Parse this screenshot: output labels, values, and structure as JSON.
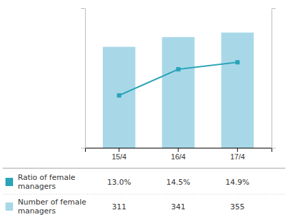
{
  "chart_data": {
    "type": "bar",
    "categories": [
      "15/4",
      "16/4",
      "17/4"
    ],
    "series": [
      {
        "name": "Number of female\nmanagers",
        "type": "bar",
        "color": "#a8d8e8",
        "values": [
          311,
          341,
          355
        ]
      },
      {
        "name": "Ratio of female\nmanagers",
        "type": "line",
        "axis": "y2",
        "color": "#2aa4b8",
        "marker": "square",
        "values": [
          13.0,
          14.5,
          14.9
        ],
        "value_labels": [
          "13.0%",
          "14.5%",
          "14.9%"
        ]
      }
    ],
    "ylim": [
      0,
      430
    ],
    "y2lim": [
      10,
      18
    ],
    "grid": false,
    "legend": "bottom",
    "tick_labels": "x"
  }
}
